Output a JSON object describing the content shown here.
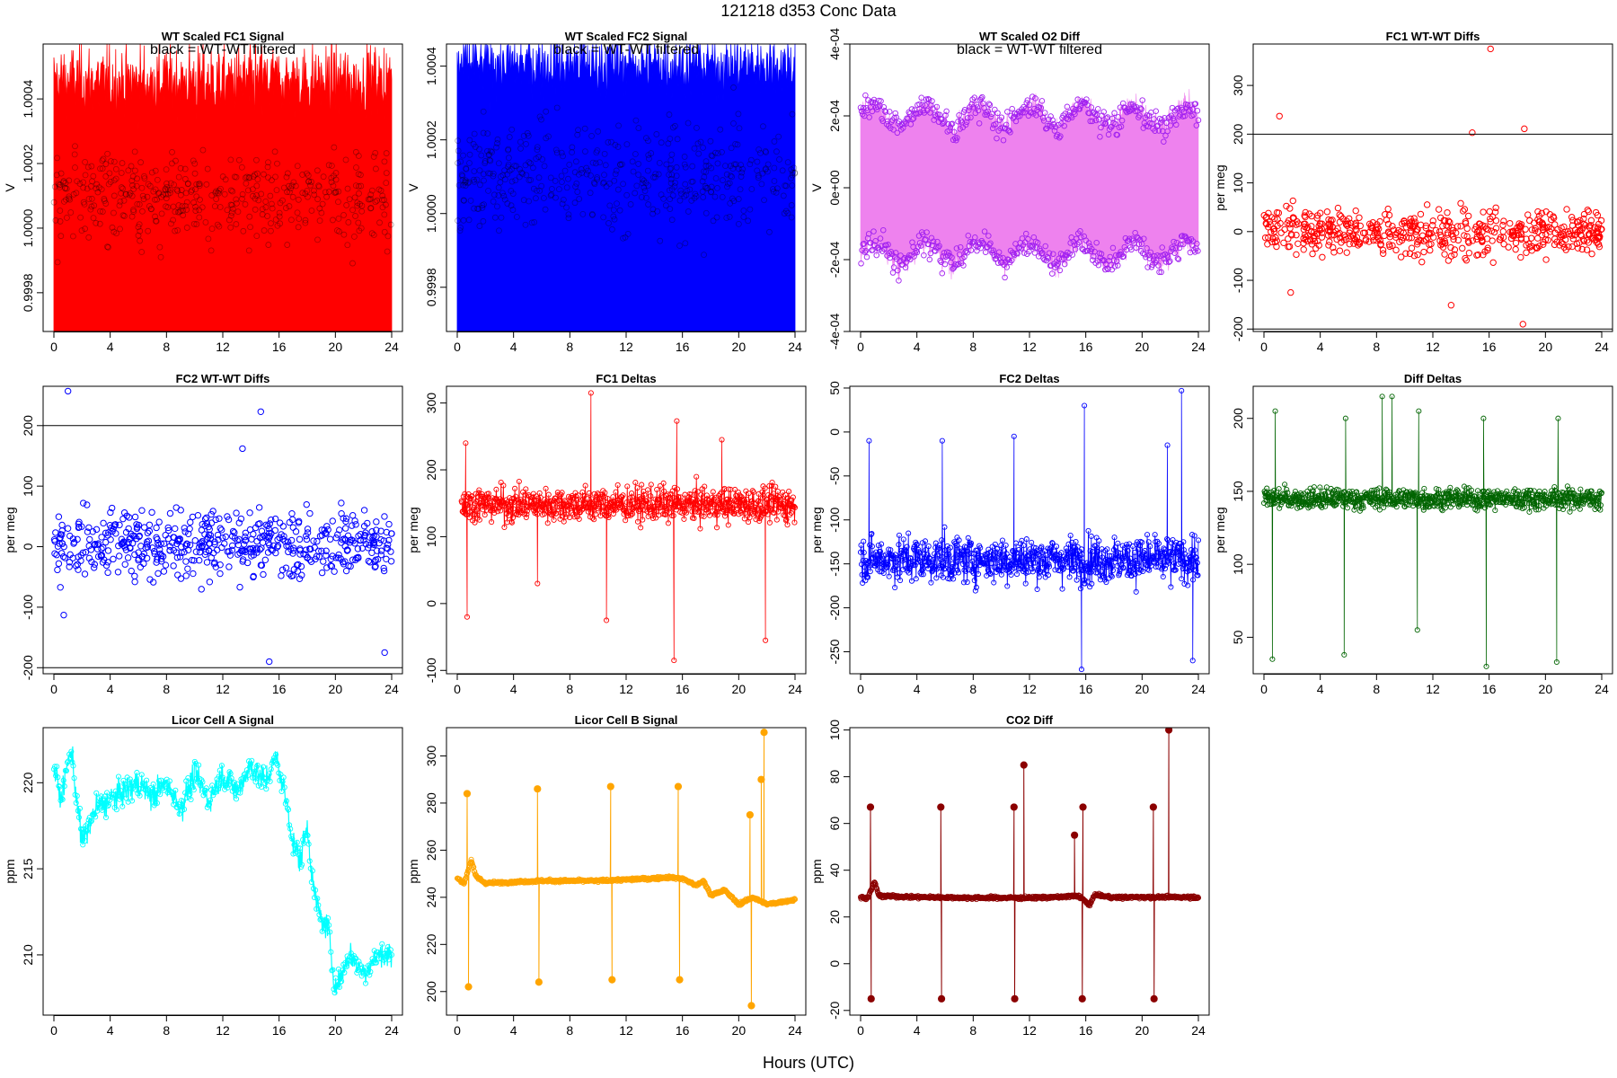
{
  "page": {
    "main_title": "121218    d353    Conc Data",
    "x_axis_label": "Hours (UTC)"
  },
  "chart_data": [
    {
      "id": "p1",
      "type": "line",
      "title": "WT Scaled FC1 Signal",
      "ylabel": "V",
      "annotation": "black = WT-WT filtered",
      "color": "#ff0000",
      "xlim": [
        0,
        24
      ],
      "ylim": [
        0.99968,
        1.00057
      ],
      "xticks": [
        "0",
        "4",
        "8",
        "12",
        "16",
        "20",
        "24"
      ],
      "yticks": [
        {
          "v": 0.9998,
          "label": "0.9998"
        },
        {
          "v": 1.0,
          "label": "1.0000"
        },
        {
          "v": 1.0002,
          "label": "1.0002"
        },
        {
          "v": 1.0004,
          "label": "1.0004"
        }
      ],
      "series": [
        {
          "name": "FC1 signal",
          "style": "band",
          "low": 0.99968,
          "high_mean": 1.00045,
          "high_spread": 0.0001,
          "points_mean": 1.0001,
          "points_spread": 0.00012,
          "x_range": [
            0,
            24
          ]
        }
      ],
      "hlines": []
    },
    {
      "id": "p2",
      "type": "line",
      "title": "WT Scaled FC2 Signal",
      "ylabel": "V",
      "annotation": "black = WT-WT filtered",
      "color": "#0000ff",
      "xlim": [
        0,
        24
      ],
      "ylim": [
        0.99968,
        1.00046
      ],
      "xticks": [
        "0",
        "4",
        "8",
        "12",
        "16",
        "20",
        "24"
      ],
      "yticks": [
        {
          "v": 0.9998,
          "label": "0.9998"
        },
        {
          "v": 1.0,
          "label": "1.0000"
        },
        {
          "v": 1.0002,
          "label": "1.0002"
        },
        {
          "v": 1.0004,
          "label": "1.0004"
        }
      ],
      "series": [
        {
          "name": "FC2 signal",
          "style": "band",
          "low": 0.99968,
          "high_mean": 1.0004,
          "high_spread": 8e-05,
          "points_mean": 1.0001,
          "points_spread": 0.00012,
          "x_range": [
            0,
            24
          ]
        }
      ],
      "hlines": []
    },
    {
      "id": "p3",
      "type": "line",
      "title": "WT Scaled O2 Diff",
      "ylabel": "V",
      "annotation": "black = WT-WT filtered",
      "color": "#ee82ee",
      "point_color": "#a020f0",
      "xlim": [
        0,
        24
      ],
      "ylim": [
        -0.0004,
        0.0004
      ],
      "xticks": [
        "0",
        "4",
        "8",
        "12",
        "16",
        "20",
        "24"
      ],
      "yticks": [
        {
          "v": -0.0004,
          "label": "-4e-04"
        },
        {
          "v": -0.0002,
          "label": "-2e-04"
        },
        {
          "v": 0,
          "label": "0e+00"
        },
        {
          "v": 0.0002,
          "label": "2e-04"
        },
        {
          "v": 0.0004,
          "label": "4e-04"
        }
      ],
      "series": [
        {
          "name": "O2 diff",
          "style": "dualband",
          "upper_mean": 0.0002,
          "lower_mean": -0.00018,
          "spread": 5e-05,
          "x_range": [
            0,
            24
          ]
        }
      ],
      "hlines": []
    },
    {
      "id": "p4",
      "type": "scatter",
      "title": "FC1 WT-WT Diffs",
      "ylabel": "per meg",
      "annotation": "",
      "color": "#ff0000",
      "xlim": [
        0,
        24
      ],
      "ylim": [
        -205,
        385
      ],
      "xticks": [
        "0",
        "4",
        "8",
        "12",
        "16",
        "20",
        "24"
      ],
      "yticks": [
        {
          "v": -200,
          "label": "-200"
        },
        {
          "v": -100,
          "label": "-100"
        },
        {
          "v": 0,
          "label": "0"
        },
        {
          "v": 100,
          "label": "100"
        },
        {
          "v": 200,
          "label": "200"
        },
        {
          "v": 300,
          "label": "300"
        }
      ],
      "series": [
        {
          "name": "FC1 diffs",
          "style": "scatter",
          "mean": 0,
          "spread": 40,
          "x_range": [
            0,
            24
          ],
          "outliers": [
            [
              1.1,
              237
            ],
            [
              16.1,
              375
            ],
            [
              14.8,
              203
            ],
            [
              18.5,
              211
            ],
            [
              18.4,
              -190
            ],
            [
              13.3,
              -151
            ],
            [
              1.9,
              -125
            ]
          ]
        }
      ],
      "hlines": [
        200,
        -200
      ]
    },
    {
      "id": "p5",
      "type": "scatter",
      "title": "FC2 WT-WT Diffs",
      "ylabel": "per meg",
      "annotation": "",
      "color": "#0000ff",
      "xlim": [
        0,
        24
      ],
      "ylim": [
        -210,
        265
      ],
      "xticks": [
        "0",
        "4",
        "8",
        "12",
        "16",
        "20",
        "24"
      ],
      "yticks": [
        {
          "v": -200,
          "label": "-200"
        },
        {
          "v": -100,
          "label": "-100"
        },
        {
          "v": 0,
          "label": "0"
        },
        {
          "v": 100,
          "label": "100"
        },
        {
          "v": 200,
          "label": "200"
        }
      ],
      "series": [
        {
          "name": "FC2 diffs",
          "style": "scatter",
          "mean": 5,
          "spread": 45,
          "x_range": [
            0,
            24
          ],
          "outliers": [
            [
              1.0,
              257
            ],
            [
              14.7,
              223
            ],
            [
              13.4,
              162
            ],
            [
              15.3,
              -190
            ],
            [
              23.5,
              -175
            ],
            [
              0.7,
              -113
            ]
          ]
        }
      ],
      "hlines": [
        200,
        -200
      ]
    },
    {
      "id": "p6",
      "type": "line",
      "title": "FC1 Deltas",
      "ylabel": "per meg",
      "annotation": "",
      "color": "#ff0000",
      "xlim": [
        0,
        24
      ],
      "ylim": [
        -105,
        325
      ],
      "xticks": [
        "0",
        "4",
        "8",
        "12",
        "16",
        "20",
        "24"
      ],
      "yticks": [
        {
          "v": -100,
          "label": "-100"
        },
        {
          "v": 0,
          "label": "0"
        },
        {
          "v": 100,
          "label": "100"
        },
        {
          "v": 200,
          "label": "200"
        },
        {
          "v": 300,
          "label": "300"
        }
      ],
      "series": [
        {
          "name": "FC1 deltas",
          "style": "noisyline",
          "mean": 148,
          "spread": 22,
          "x_range": [
            0.3,
            24
          ],
          "spikes": [
            [
              0.7,
              -20
            ],
            [
              0.6,
              240
            ],
            [
              9.5,
              315
            ],
            [
              10.6,
              -25
            ],
            [
              15.4,
              -85
            ],
            [
              15.6,
              273
            ],
            [
              21.9,
              -55
            ],
            [
              5.7,
              30
            ],
            [
              18.8,
              245
            ]
          ]
        }
      ],
      "hlines": []
    },
    {
      "id": "p7",
      "type": "line",
      "title": "FC2 Deltas",
      "ylabel": "per meg",
      "annotation": "",
      "color": "#0000ff",
      "xlim": [
        0,
        24
      ],
      "ylim": [
        -275,
        52
      ],
      "xticks": [
        "0",
        "4",
        "8",
        "12",
        "16",
        "20",
        "24"
      ],
      "yticks": [
        {
          "v": -250,
          "label": "-250"
        },
        {
          "v": -200,
          "label": "-200"
        },
        {
          "v": -150,
          "label": "-150"
        },
        {
          "v": -100,
          "label": "-100"
        },
        {
          "v": -50,
          "label": "-50"
        },
        {
          "v": 0,
          "label": "0"
        },
        {
          "v": 50,
          "label": "50"
        }
      ],
      "series": [
        {
          "name": "FC2 deltas",
          "style": "noisyline",
          "mean": -145,
          "spread": 22,
          "x_range": [
            0,
            24
          ],
          "spikes": [
            [
              0.6,
              -10
            ],
            [
              5.8,
              -10
            ],
            [
              10.9,
              -5
            ],
            [
              15.9,
              30
            ],
            [
              15.7,
              -270
            ],
            [
              21.8,
              -15
            ],
            [
              22.8,
              47
            ],
            [
              23.6,
              -260
            ]
          ]
        }
      ],
      "hlines": []
    },
    {
      "id": "p8",
      "type": "line",
      "title": "Diff Deltas",
      "ylabel": "per meg",
      "annotation": "",
      "color": "#006400",
      "xlim": [
        0,
        24
      ],
      "ylim": [
        25,
        222
      ],
      "xticks": [
        "0",
        "4",
        "8",
        "12",
        "16",
        "20",
        "24"
      ],
      "yticks": [
        {
          "v": 50,
          "label": "50"
        },
        {
          "v": 100,
          "label": "100"
        },
        {
          "v": 150,
          "label": "150"
        },
        {
          "v": 200,
          "label": "200"
        }
      ],
      "series": [
        {
          "name": "Diff deltas",
          "style": "noisyline",
          "mean": 145,
          "spread": 6,
          "x_range": [
            0,
            24
          ],
          "spikes": [
            [
              0.6,
              35
            ],
            [
              0.8,
              205
            ],
            [
              5.7,
              38
            ],
            [
              5.8,
              200
            ],
            [
              10.9,
              55
            ],
            [
              11.0,
              205
            ],
            [
              15.8,
              30
            ],
            [
              15.6,
              200
            ],
            [
              20.8,
              33
            ],
            [
              20.9,
              200
            ],
            [
              8.4,
              215
            ],
            [
              9.1,
              215
            ]
          ]
        }
      ],
      "hlines": []
    },
    {
      "id": "p9",
      "type": "line",
      "title": "Licor Cell A Signal",
      "ylabel": "ppm",
      "annotation": "",
      "color": "#00ffff",
      "xlim": [
        0,
        24
      ],
      "ylim": [
        206.5,
        223.2
      ],
      "xticks": [
        "0",
        "4",
        "8",
        "12",
        "16",
        "20",
        "24"
      ],
      "yticks": [
        {
          "v": 210,
          "label": "210"
        },
        {
          "v": 215,
          "label": "215"
        },
        {
          "v": 220,
          "label": "220"
        }
      ],
      "series": [
        {
          "name": "Cell A",
          "style": "trend",
          "x": [
            0,
            0.5,
            1.2,
            2.0,
            3.0,
            4.0,
            5.0,
            6.0,
            7.0,
            8.0,
            9.0,
            10.0,
            11.0,
            12.0,
            13.0,
            14.0,
            15.0,
            15.8,
            16.5,
            17.0,
            17.5,
            18.0,
            18.5,
            19.0,
            19.5,
            20.0,
            21.0,
            22.0,
            23.0,
            24.0
          ],
          "y": [
            221,
            219,
            222,
            216.5,
            218.5,
            219,
            219.5,
            220,
            219.2,
            220,
            218.5,
            220.5,
            219,
            220.5,
            219.5,
            221,
            220,
            221.5,
            219,
            216.5,
            215.5,
            217.5,
            213.5,
            212,
            211.5,
            208,
            210,
            209,
            210,
            210
          ]
        }
      ],
      "hlines": []
    },
    {
      "id": "p10",
      "type": "line",
      "title": "Licor Cell B Signal",
      "ylabel": "ppm",
      "annotation": "",
      "color": "#ffa500",
      "xlim": [
        0,
        24
      ],
      "ylim": [
        190,
        312
      ],
      "xticks": [
        "0",
        "4",
        "8",
        "12",
        "16",
        "20",
        "24"
      ],
      "yticks": [
        {
          "v": 200,
          "label": "200"
        },
        {
          "v": 220,
          "label": "220"
        },
        {
          "v": 240,
          "label": "240"
        },
        {
          "v": 260,
          "label": "260"
        },
        {
          "v": 280,
          "label": "280"
        },
        {
          "v": 300,
          "label": "300"
        }
      ],
      "series": [
        {
          "name": "Cell B",
          "style": "trendspikes",
          "x": [
            0,
            0.5,
            1.0,
            1.3,
            2.0,
            4.0,
            6.0,
            8.0,
            10.0,
            12.0,
            14.0,
            15.0,
            16.0,
            17.0,
            17.5,
            18.0,
            19.0,
            20.0,
            21.0,
            22.0,
            24.0
          ],
          "y": [
            248,
            246,
            256,
            249,
            246,
            246.5,
            247,
            247,
            247,
            247.5,
            248,
            248.5,
            248,
            245,
            247,
            241,
            243,
            237,
            240,
            237,
            239
          ],
          "spikes": [
            [
              0.7,
              284
            ],
            [
              0.8,
              202
            ],
            [
              5.7,
              286
            ],
            [
              5.8,
              204
            ],
            [
              10.9,
              287
            ],
            [
              11.0,
              205
            ],
            [
              15.7,
              287
            ],
            [
              15.8,
              205
            ],
            [
              20.8,
              275
            ],
            [
              20.9,
              194
            ],
            [
              21.8,
              310
            ],
            [
              21.6,
              290
            ]
          ]
        }
      ],
      "hlines": []
    },
    {
      "id": "p11",
      "type": "line",
      "title": "CO2 Diff",
      "ylabel": "ppm",
      "annotation": "",
      "color": "#8b0000",
      "xlim": [
        0,
        24
      ],
      "ylim": [
        -22,
        101
      ],
      "xticks": [
        "0",
        "4",
        "8",
        "12",
        "16",
        "20",
        "24"
      ],
      "yticks": [
        {
          "v": -20,
          "label": "-20"
        },
        {
          "v": 0,
          "label": "0"
        },
        {
          "v": 20,
          "label": "20"
        },
        {
          "v": 40,
          "label": "40"
        },
        {
          "v": 60,
          "label": "60"
        },
        {
          "v": 80,
          "label": "80"
        },
        {
          "v": 100,
          "label": "100"
        }
      ],
      "series": [
        {
          "name": "CO2 diff",
          "style": "trendspikes",
          "x": [
            0,
            0.5,
            1.0,
            1.3,
            4.0,
            8.0,
            12.0,
            14.0,
            15.5,
            16.3,
            16.6,
            18.0,
            20.0,
            22.0,
            24.0
          ],
          "y": [
            28.5,
            28,
            35,
            29,
            28.5,
            28.2,
            28.2,
            28.5,
            29,
            25,
            29.5,
            28.3,
            28.5,
            28.5,
            28.5
          ],
          "spikes": [
            [
              0.7,
              67
            ],
            [
              0.75,
              -15
            ],
            [
              5.7,
              67
            ],
            [
              5.75,
              -15
            ],
            [
              10.9,
              67
            ],
            [
              10.95,
              -15
            ],
            [
              15.8,
              67
            ],
            [
              15.75,
              -15
            ],
            [
              20.8,
              67
            ],
            [
              20.85,
              -15
            ],
            [
              21.9,
              100
            ],
            [
              11.6,
              85
            ],
            [
              15.2,
              55
            ]
          ]
        }
      ],
      "hlines": []
    }
  ]
}
